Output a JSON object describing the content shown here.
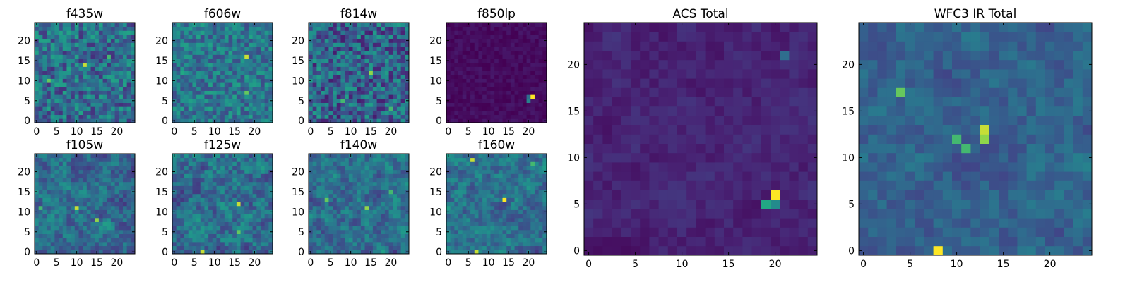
{
  "chart_data": [
    {
      "type": "heatmap",
      "title": "f435w",
      "grid_size": 25,
      "xticks": [
        "0",
        "5",
        "10",
        "15",
        "20"
      ],
      "yticks": [
        "0",
        "5",
        "10",
        "15",
        "20"
      ],
      "colormap": "viridis",
      "seed": 11,
      "base": 0.45,
      "noise": 0.55,
      "smooth": 0,
      "hotspots": [
        {
          "x": 12,
          "y": 14,
          "v": 0.95
        },
        {
          "x": 3,
          "y": 10,
          "v": 0.85
        },
        {
          "x": 18,
          "y": 16,
          "v": 0.8
        }
      ]
    },
    {
      "type": "heatmap",
      "title": "f606w",
      "grid_size": 25,
      "xticks": [
        "0",
        "5",
        "10",
        "15",
        "20"
      ],
      "yticks": [
        "0",
        "5",
        "10",
        "15",
        "20"
      ],
      "colormap": "viridis",
      "seed": 23,
      "base": 0.5,
      "noise": 0.45,
      "smooth": 0,
      "hotspots": [
        {
          "x": 18,
          "y": 16,
          "v": 0.95
        },
        {
          "x": 18,
          "y": 7,
          "v": 0.85
        },
        {
          "x": 2,
          "y": 12,
          "v": 0.75
        }
      ]
    },
    {
      "type": "heatmap",
      "title": "f814w",
      "grid_size": 25,
      "xticks": [
        "0",
        "5",
        "10",
        "15",
        "20"
      ],
      "yticks": [
        "0",
        "5",
        "10",
        "15",
        "20"
      ],
      "colormap": "viridis",
      "seed": 37,
      "base": 0.4,
      "noise": 0.6,
      "smooth": 0,
      "hotspots": [
        {
          "x": 15,
          "y": 12,
          "v": 0.9
        },
        {
          "x": 8,
          "y": 5,
          "v": 0.8
        },
        {
          "x": 20,
          "y": 3,
          "v": 0.8
        }
      ]
    },
    {
      "type": "heatmap",
      "title": "f850lp",
      "grid_size": 25,
      "xticks": [
        "0",
        "5",
        "10",
        "15",
        "20"
      ],
      "yticks": [
        "0",
        "5",
        "10",
        "15",
        "20"
      ],
      "colormap": "viridis",
      "seed": 41,
      "base": 0.04,
      "noise": 0.1,
      "smooth": 0,
      "hotspots": [
        {
          "x": 21,
          "y": 6,
          "v": 1.0
        },
        {
          "x": 20,
          "y": 5,
          "v": 0.55
        },
        {
          "x": 20,
          "y": 6,
          "v": 0.45
        }
      ]
    },
    {
      "type": "heatmap",
      "title": "f105w",
      "grid_size": 25,
      "xticks": [
        "0",
        "5",
        "10",
        "15",
        "20"
      ],
      "yticks": [
        "0",
        "5",
        "10",
        "15",
        "20"
      ],
      "colormap": "viridis",
      "seed": 53,
      "base": 0.45,
      "noise": 0.5,
      "smooth": 1,
      "hotspots": [
        {
          "x": 10,
          "y": 11,
          "v": 0.95
        },
        {
          "x": 15,
          "y": 8,
          "v": 0.9
        },
        {
          "x": 1,
          "y": 11,
          "v": 0.8
        }
      ]
    },
    {
      "type": "heatmap",
      "title": "f125w",
      "grid_size": 25,
      "xticks": [
        "0",
        "5",
        "10",
        "15",
        "20"
      ],
      "yticks": [
        "0",
        "5",
        "10",
        "15",
        "20"
      ],
      "colormap": "viridis",
      "seed": 67,
      "base": 0.45,
      "noise": 0.5,
      "smooth": 1,
      "hotspots": [
        {
          "x": 16,
          "y": 12,
          "v": 0.95
        },
        {
          "x": 7,
          "y": 0,
          "v": 0.95
        },
        {
          "x": 16,
          "y": 5,
          "v": 0.85
        }
      ]
    },
    {
      "type": "heatmap",
      "title": "f140w",
      "grid_size": 25,
      "xticks": [
        "0",
        "5",
        "10",
        "15",
        "20"
      ],
      "yticks": [
        "0",
        "5",
        "10",
        "15",
        "20"
      ],
      "colormap": "viridis",
      "seed": 79,
      "base": 0.45,
      "noise": 0.5,
      "smooth": 1,
      "hotspots": [
        {
          "x": 14,
          "y": 11,
          "v": 0.9
        },
        {
          "x": 4,
          "y": 13,
          "v": 0.85
        },
        {
          "x": 20,
          "y": 15,
          "v": 0.8
        }
      ]
    },
    {
      "type": "heatmap",
      "title": "f160w",
      "grid_size": 25,
      "xticks": [
        "0",
        "5",
        "10",
        "15",
        "20"
      ],
      "yticks": [
        "0",
        "5",
        "10",
        "15",
        "20"
      ],
      "colormap": "viridis",
      "seed": 83,
      "base": 0.45,
      "noise": 0.5,
      "smooth": 1,
      "hotspots": [
        {
          "x": 14,
          "y": 13,
          "v": 1.0
        },
        {
          "x": 6,
          "y": 23,
          "v": 0.95
        },
        {
          "x": 7,
          "y": 0,
          "v": 0.95
        },
        {
          "x": 21,
          "y": 22,
          "v": 0.8
        }
      ]
    },
    {
      "type": "heatmap",
      "title": "ACS Total",
      "grid_size": 25,
      "xticks": [
        "0",
        "5",
        "10",
        "15",
        "20"
      ],
      "yticks": [
        "0",
        "5",
        "10",
        "15",
        "20"
      ],
      "colormap": "viridis",
      "seed": 97,
      "base": 0.12,
      "noise": 0.16,
      "smooth": 1,
      "hotspots": [
        {
          "x": 20,
          "y": 6,
          "v": 1.0
        },
        {
          "x": 19,
          "y": 5,
          "v": 0.75
        },
        {
          "x": 20,
          "y": 5,
          "v": 0.6
        },
        {
          "x": 21,
          "y": 21,
          "v": 0.45
        }
      ]
    },
    {
      "type": "heatmap",
      "title": "WFC3 IR Total",
      "grid_size": 25,
      "xticks": [
        "0",
        "5",
        "10",
        "15",
        "20"
      ],
      "yticks": [
        "0",
        "5",
        "10",
        "15",
        "20"
      ],
      "colormap": "viridis",
      "seed": 109,
      "base": 0.4,
      "noise": 0.3,
      "smooth": 1,
      "hotspots": [
        {
          "x": 13,
          "y": 13,
          "v": 0.95
        },
        {
          "x": 13,
          "y": 12,
          "v": 0.9
        },
        {
          "x": 8,
          "y": 0,
          "v": 1.0
        },
        {
          "x": 4,
          "y": 17,
          "v": 0.85
        },
        {
          "x": 10,
          "y": 12,
          "v": 0.8
        },
        {
          "x": 11,
          "y": 11,
          "v": 0.8
        }
      ]
    }
  ]
}
